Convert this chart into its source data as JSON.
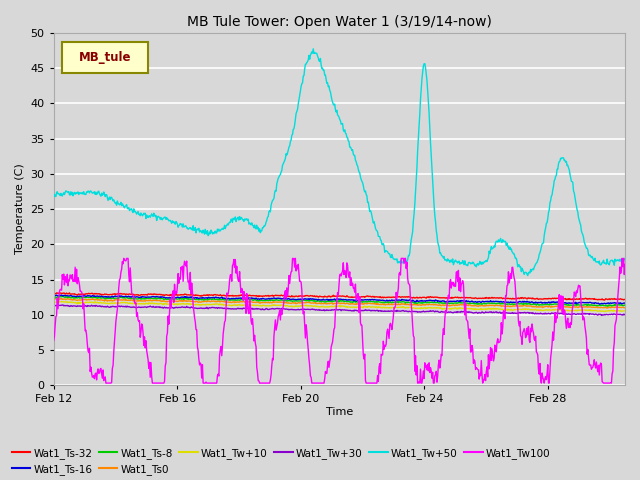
{
  "title": "MB Tule Tower: Open Water 1 (3/19/14-now)",
  "xlabel": "Time",
  "ylabel": "Temperature (C)",
  "ylim": [
    0,
    50
  ],
  "yticks": [
    0,
    5,
    10,
    15,
    20,
    25,
    30,
    35,
    40,
    45,
    50
  ],
  "xlim_days": [
    0,
    18.5
  ],
  "xtick_labels": [
    "Feb 12",
    "Feb 16",
    "Feb 20",
    "Feb 24",
    "Feb 28"
  ],
  "xtick_positions": [
    0,
    4,
    8,
    12,
    16
  ],
  "bg_color": "#d8d8d8",
  "plot_bg_color": "#d8d8d8",
  "grid_color": "#ffffff",
  "series_colors": {
    "Wat1_Ts-32": "#ff0000",
    "Wat1_Ts-16": "#0000dd",
    "Wat1_Ts-8": "#00cc00",
    "Wat1_Ts0": "#ff8800",
    "Wat1_Tw+10": "#dddd00",
    "Wat1_Tw+30": "#8800cc",
    "Wat1_Tw+50": "#00dddd",
    "Wat1_Tw100": "#ff00ff"
  },
  "legend_box_color": "#ffffcc",
  "legend_box_edge": "#888800",
  "legend_text_color": "#880000",
  "legend_label": "MB_tule"
}
